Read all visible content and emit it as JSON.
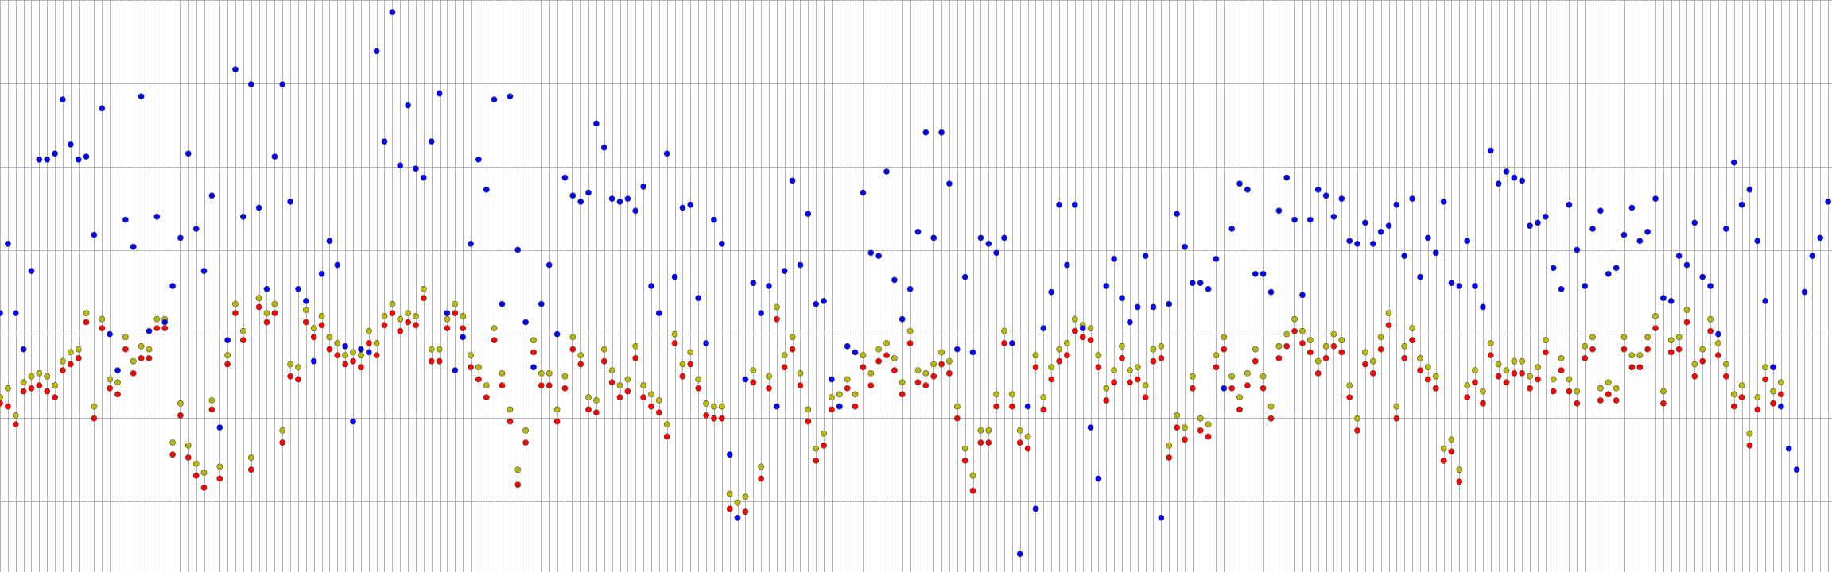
{
  "chart_data": {
    "type": "scatter",
    "title": "",
    "xlabel": "",
    "ylabel": "",
    "grid": true,
    "legend": "none",
    "x_divisions": 233,
    "y_divisions": 7,
    "x": [
      0,
      1,
      2,
      3,
      4,
      5,
      6,
      7,
      8,
      9,
      10,
      11,
      12,
      13,
      14,
      15,
      16,
      17,
      18,
      19,
      20,
      21,
      22,
      23,
      24,
      25,
      26,
      27,
      28,
      29,
      30,
      31,
      32,
      33,
      34,
      35,
      36,
      37,
      38,
      39,
      40,
      41,
      42,
      43,
      44,
      45,
      46,
      47,
      48,
      49,
      50,
      51,
      52,
      53,
      54,
      55,
      56,
      57,
      58,
      59,
      60,
      61,
      62,
      63,
      64,
      65,
      66,
      67,
      68,
      69,
      70,
      71,
      72,
      73,
      74,
      75,
      76,
      77,
      78,
      79,
      80,
      81,
      82,
      83,
      84,
      85,
      86,
      87,
      88,
      89,
      90,
      91,
      92,
      93,
      94,
      95,
      96,
      97,
      98,
      99,
      100,
      101,
      102,
      103,
      104,
      105,
      106,
      107,
      108,
      109,
      110,
      111,
      112,
      113,
      114,
      115,
      116,
      117,
      118,
      119,
      120,
      121,
      122,
      123,
      124,
      125,
      126,
      127,
      128,
      129,
      130,
      131,
      132,
      133,
      134,
      135,
      136,
      137,
      138,
      139,
      140,
      141,
      142,
      143,
      144,
      145,
      146,
      147,
      148,
      149,
      150,
      151,
      152,
      153,
      154,
      155,
      156,
      157,
      158,
      159,
      160,
      161,
      162,
      163,
      164,
      165,
      166,
      167,
      168,
      169,
      170,
      171,
      172,
      173,
      174,
      175,
      176,
      177,
      178,
      179,
      180,
      181,
      182,
      183,
      184,
      185,
      186,
      187,
      188,
      189,
      190,
      191,
      192,
      193,
      194,
      195,
      196,
      197,
      198,
      199,
      200,
      201,
      202,
      203,
      204,
      205,
      206,
      207,
      208,
      209,
      210,
      211,
      212,
      213,
      214,
      215,
      216,
      217,
      218,
      219,
      220,
      221,
      222,
      223,
      224,
      225,
      226,
      227,
      228,
      229,
      230,
      231,
      232,
      233
    ],
    "series": [
      {
        "color": "#0000ff",
        "values": [
          5.36,
          5.59,
          5.36,
          5.24,
          5.5,
          5.87,
          5.87,
          5.89,
          6.07,
          5.92,
          5.87,
          5.88,
          5.62,
          6.04,
          5.29,
          5.17,
          5.67,
          5.58,
          6.08,
          5.3,
          5.68,
          5.33,
          5.45,
          5.61,
          5.89,
          5.64,
          5.5,
          5.75,
          4.98,
          5.27,
          6.17,
          5.68,
          6.12,
          5.71,
          5.44,
          5.88,
          6.12,
          5.73,
          5.44,
          5.4,
          5.2,
          5.49,
          5.6,
          5.52,
          5.25,
          5.0,
          5.24,
          5.23,
          6.23,
          5.93,
          6.36,
          5.85,
          6.05,
          5.84,
          5.81,
          5.93,
          6.09,
          5.36,
          5.17,
          5.28,
          5.59,
          5.87,
          5.77,
          6.07,
          5.39,
          6.08,
          5.57,
          5.33,
          5.18,
          5.39,
          5.52,
          5.29,
          5.81,
          5.75,
          5.73,
          5.76,
          5.99,
          5.91,
          5.74,
          5.73,
          5.74,
          5.7,
          5.78,
          5.45,
          5.36,
          5.89,
          5.48,
          5.71,
          5.72,
          5.41,
          5.26,
          5.67,
          5.59,
          4.89,
          4.68,
          5.14,
          5.46,
          5.36,
          5.45,
          5.05,
          5.5,
          5.8,
          5.52,
          5.69,
          5.39,
          5.4,
          5.14,
          5.05,
          5.25,
          5.23,
          5.76,
          5.56,
          5.55,
          5.83,
          5.47,
          5.34,
          5.44,
          5.63,
          5.96,
          5.61,
          5.96,
          5.79,
          5.24,
          5.48,
          5.23,
          5.61,
          5.59,
          5.56,
          5.61,
          5.26,
          4.56,
          5.05,
          4.71,
          5.31,
          5.43,
          5.72,
          5.52,
          5.72,
          5.31,
          4.98,
          4.81,
          5.45,
          5.54,
          5.41,
          5.33,
          5.38,
          5.55,
          5.38,
          4.68,
          5.39,
          5.69,
          5.58,
          5.46,
          5.46,
          5.44,
          5.54,
          5.11,
          5.64,
          5.79,
          5.77,
          5.49,
          5.49,
          5.43,
          5.7,
          5.81,
          5.67,
          5.42,
          5.67,
          5.77,
          5.75,
          5.68,
          5.74,
          5.6,
          5.59,
          5.66,
          5.59,
          5.63,
          5.65,
          5.72,
          5.55,
          5.74,
          5.48,
          5.61,
          5.56,
          5.73,
          5.46,
          5.45,
          5.6,
          5.45,
          5.38,
          5.9,
          5.79,
          5.83,
          5.81,
          5.8,
          5.65,
          5.66,
          5.68,
          5.51,
          5.44,
          5.72,
          5.57,
          5.45,
          5.64,
          5.7,
          5.49,
          5.51,
          5.62,
          5.71,
          5.6,
          5.63,
          5.74,
          5.41,
          5.4,
          5.55,
          5.52,
          5.66,
          5.48,
          5.45,
          5.29,
          5.64,
          5.86,
          5.72,
          5.77,
          5.6,
          5.4,
          5.18,
          5.05,
          4.91,
          4.84,
          5.43,
          5.55,
          5.61,
          5.73
        ]
      },
      {
        "color": "#ff0000",
        "values": [
          5.06,
          5.05,
          4.99,
          5.1,
          5.11,
          5.12,
          5.1,
          5.08,
          5.17,
          5.19,
          5.21,
          5.33,
          5.01,
          5.31,
          5.11,
          5.09,
          5.24,
          5.16,
          5.21,
          5.21,
          5.31,
          5.31,
          4.89,
          5.02,
          4.88,
          4.82,
          4.78,
          5.04,
          4.81,
          5.19,
          5.36,
          5.27,
          4.84,
          5.38,
          5.33,
          5.36,
          4.93,
          5.15,
          5.14,
          5.33,
          5.28,
          5.32,
          5.24,
          5.22,
          5.19,
          5.2,
          5.18,
          5.26,
          5.22,
          5.32,
          5.36,
          5.3,
          5.33,
          5.32,
          5.41,
          5.2,
          5.2,
          5.31,
          5.36,
          5.31,
          5.18,
          5.14,
          5.08,
          5.27,
          5.12,
          5.0,
          4.79,
          4.93,
          5.23,
          5.12,
          5.12,
          5.0,
          5.11,
          5.24,
          5.19,
          5.04,
          5.03,
          5.2,
          5.13,
          5.08,
          5.1,
          5.21,
          5.08,
          5.05,
          5.03,
          4.95,
          5.26,
          5.15,
          5.19,
          5.11,
          5.02,
          5.01,
          5.01,
          4.71,
          4.68,
          4.7,
          5.13,
          4.81,
          5.11,
          5.34,
          5.18,
          5.24,
          5.12,
          5.0,
          4.87,
          4.92,
          5.04,
          5.05,
          5.11,
          5.05,
          5.18,
          5.12,
          5.2,
          5.22,
          5.17,
          5.09,
          5.26,
          5.13,
          5.12,
          5.15,
          5.19,
          5.16,
          5.01,
          4.87,
          4.77,
          4.93,
          4.93,
          5.05,
          5.26,
          5.05,
          4.93,
          4.91,
          5.18,
          5.04,
          5.14,
          5.2,
          5.22,
          5.3,
          5.28,
          5.27,
          5.18,
          5.07,
          5.13,
          5.21,
          5.13,
          5.14,
          5.08,
          5.2,
          5.21,
          4.88,
          4.98,
          4.94,
          5.11,
          4.97,
          4.95,
          5.18,
          5.24,
          5.11,
          5.04,
          5.12,
          5.2,
          5.11,
          5.01,
          5.21,
          5.25,
          5.3,
          5.26,
          5.23,
          5.16,
          5.21,
          5.25,
          5.23,
          5.08,
          4.97,
          5.19,
          5.16,
          5.24,
          5.32,
          5.01,
          5.21,
          5.27,
          5.17,
          5.14,
          5.11,
          4.87,
          4.9,
          4.8,
          5.08,
          5.13,
          5.06,
          5.22,
          5.15,
          5.13,
          5.16,
          5.16,
          5.11,
          5.14,
          5.23,
          5.1,
          5.17,
          5.1,
          5.06,
          5.21,
          5.24,
          5.07,
          5.09,
          5.07,
          5.24,
          5.18,
          5.18,
          5.24,
          5.31,
          5.06,
          5.23,
          5.24,
          5.33,
          5.15,
          5.2,
          5.3,
          5.22,
          5.15,
          5.05,
          5.08,
          4.92,
          5.04,
          5.14,
          5.06,
          5.09
        ]
      },
      {
        "color": "#b8b800",
        "values": [
          5.08,
          5.11,
          5.02,
          5.13,
          5.15,
          5.16,
          5.15,
          5.12,
          5.2,
          5.23,
          5.24,
          5.36,
          5.05,
          5.34,
          5.14,
          5.13,
          5.28,
          5.2,
          5.25,
          5.24,
          5.34,
          5.34,
          4.93,
          5.06,
          4.92,
          4.86,
          4.83,
          5.07,
          4.85,
          5.22,
          5.39,
          5.3,
          4.88,
          5.41,
          5.36,
          5.39,
          4.97,
          5.19,
          5.18,
          5.37,
          5.31,
          5.35,
          5.28,
          5.26,
          5.22,
          5.23,
          5.22,
          5.3,
          5.26,
          5.35,
          5.39,
          5.34,
          5.36,
          5.35,
          5.44,
          5.24,
          5.24,
          5.34,
          5.39,
          5.35,
          5.22,
          5.18,
          5.12,
          5.31,
          5.16,
          5.04,
          4.84,
          4.97,
          5.27,
          5.16,
          5.16,
          5.04,
          5.15,
          5.28,
          5.22,
          5.08,
          5.07,
          5.24,
          5.17,
          5.12,
          5.14,
          5.25,
          5.12,
          5.09,
          5.07,
          4.99,
          5.29,
          5.19,
          5.23,
          5.14,
          5.06,
          5.05,
          5.05,
          4.76,
          4.73,
          4.75,
          5.17,
          4.85,
          5.15,
          5.38,
          5.22,
          5.28,
          5.16,
          5.04,
          4.91,
          4.96,
          5.08,
          5.09,
          5.14,
          5.09,
          5.22,
          5.16,
          5.24,
          5.26,
          5.21,
          5.13,
          5.3,
          5.17,
          5.16,
          5.19,
          5.23,
          5.2,
          5.05,
          4.91,
          4.82,
          4.97,
          4.97,
          5.09,
          5.3,
          5.09,
          4.97,
          4.95,
          5.22,
          5.08,
          5.18,
          5.24,
          5.26,
          5.34,
          5.32,
          5.31,
          5.22,
          5.11,
          5.17,
          5.25,
          5.17,
          5.18,
          5.12,
          5.24,
          5.25,
          4.92,
          5.02,
          4.98,
          5.15,
          5.01,
          4.99,
          5.22,
          5.28,
          5.15,
          5.08,
          5.16,
          5.24,
          5.15,
          5.05,
          5.25,
          5.29,
          5.34,
          5.3,
          5.27,
          5.2,
          5.25,
          5.29,
          5.27,
          5.12,
          5.01,
          5.23,
          5.2,
          5.28,
          5.36,
          5.05,
          5.25,
          5.31,
          5.21,
          5.18,
          5.15,
          4.91,
          4.94,
          4.84,
          5.12,
          5.17,
          5.1,
          5.26,
          5.19,
          5.17,
          5.2,
          5.2,
          5.15,
          5.18,
          5.27,
          5.14,
          5.21,
          5.14,
          5.1,
          5.25,
          5.28,
          5.11,
          5.13,
          5.11,
          5.28,
          5.22,
          5.22,
          5.28,
          5.35,
          5.1,
          5.27,
          5.28,
          5.37,
          5.19,
          5.24,
          5.34,
          5.26,
          5.19,
          5.09,
          5.12,
          4.96,
          5.08,
          5.18,
          5.1,
          5.13
        ]
      }
    ]
  }
}
